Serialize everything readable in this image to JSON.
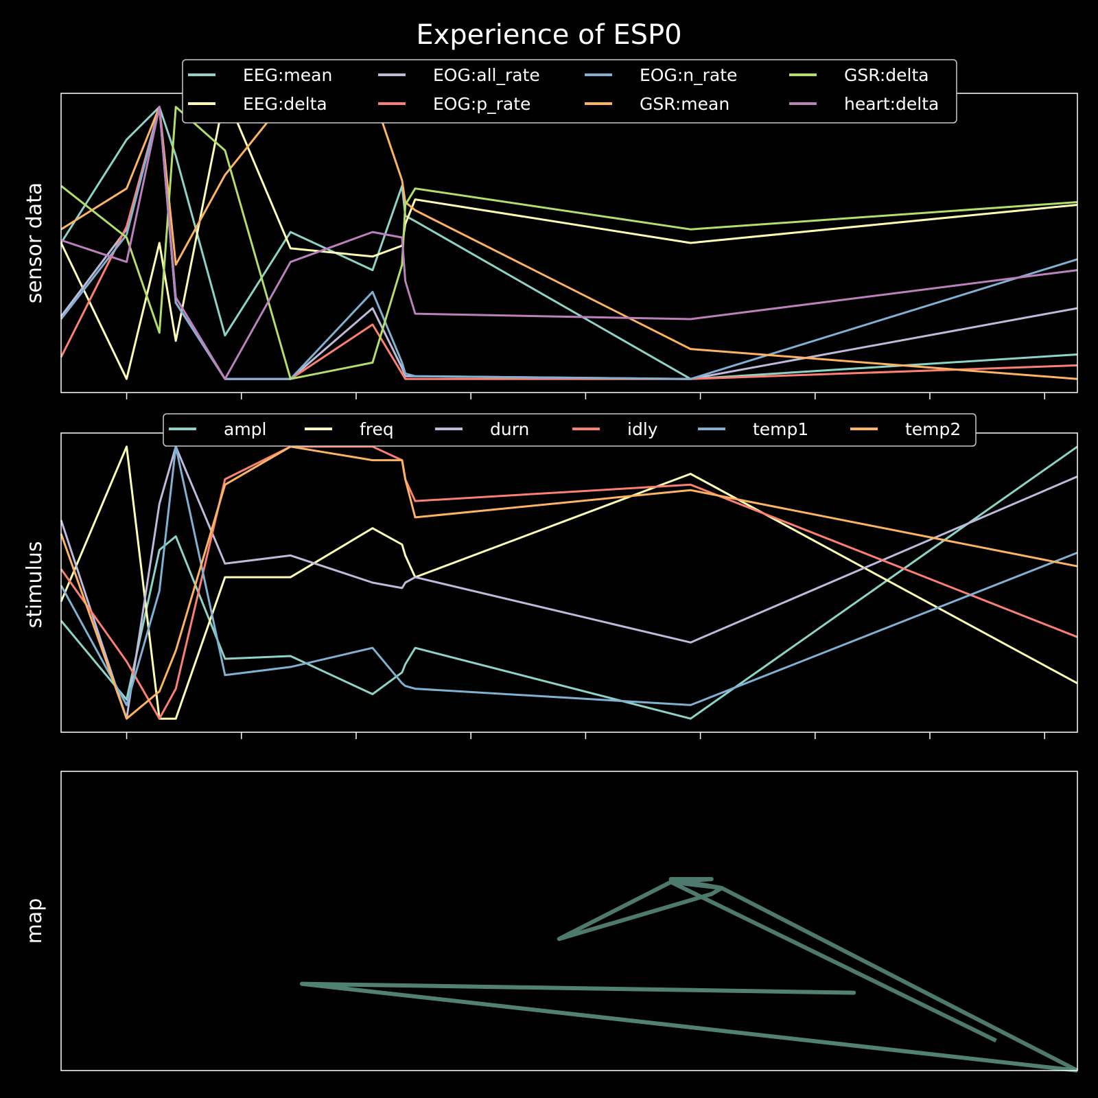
{
  "figure": {
    "title": "Experience of ESP0",
    "background": "#000000"
  },
  "chart_data": [
    {
      "type": "line",
      "ylabel": "sensor data",
      "xlim": [
        0,
        31
      ],
      "ylim": [
        -0.05,
        1.05
      ],
      "grid": false,
      "legend_placement": "top-center",
      "x": [
        0,
        2,
        3,
        3.5,
        5,
        7,
        9.5,
        10.4,
        10.5,
        10.8,
        19.2,
        31
      ],
      "series": [
        {
          "name": "EEG:mean",
          "color": "#8dd3c7",
          "values": [
            0.5,
            0.88,
            1.0,
            0.82,
            0.16,
            0.54,
            0.4,
            0.71,
            0.6,
            0.58,
            0.0,
            0.09
          ]
        },
        {
          "name": "EEG:delta",
          "color": "#ffffb3",
          "values": [
            0.5,
            0.0,
            0.5,
            0.14,
            1.05,
            0.48,
            0.45,
            0.49,
            0.57,
            0.66,
            0.5,
            0.64
          ]
        },
        {
          "name": "EOG:all_rate",
          "color": "#bebada",
          "values": [
            0.23,
            0.55,
            1.0,
            0.28,
            0.0,
            0.0,
            0.26,
            0.04,
            0.01,
            0.01,
            0.0,
            0.26
          ]
        },
        {
          "name": "EOG:p_rate",
          "color": "#fb8072",
          "values": [
            0.08,
            0.56,
            1.0,
            0.28,
            0.0,
            0.0,
            0.2,
            0.02,
            0.0,
            0.0,
            0.0,
            0.05
          ]
        },
        {
          "name": "EOG:n_rate",
          "color": "#80b1d3",
          "values": [
            0.22,
            0.53,
            1.0,
            0.28,
            0.0,
            0.0,
            0.32,
            0.06,
            0.02,
            0.01,
            0.0,
            0.44
          ]
        },
        {
          "name": "GSR:mean",
          "color": "#fdb462",
          "values": [
            0.55,
            0.7,
            1.0,
            0.42,
            0.75,
            1.05,
            1.05,
            0.73,
            0.65,
            0.62,
            0.11,
            0.0
          ]
        },
        {
          "name": "GSR:delta",
          "color": "#b3de69",
          "values": [
            0.71,
            0.52,
            0.17,
            1.0,
            0.84,
            0.0,
            0.06,
            0.42,
            0.64,
            0.7,
            0.55,
            0.65
          ]
        },
        {
          "name": "heart:delta",
          "color": "#bc80bd",
          "values": [
            0.51,
            0.43,
            1.0,
            0.3,
            0.0,
            0.43,
            0.54,
            0.52,
            0.36,
            0.24,
            0.22,
            0.4
          ]
        }
      ]
    },
    {
      "type": "line",
      "ylabel": "stimulus",
      "xlim": [
        0,
        31
      ],
      "ylim": [
        -0.05,
        1.05
      ],
      "grid": false,
      "legend_placement": "top-center",
      "x": [
        0,
        2,
        3,
        3.5,
        5,
        7,
        9.5,
        10.4,
        10.5,
        10.8,
        19.2,
        31
      ],
      "series": [
        {
          "name": "ampl",
          "color": "#8dd3c7",
          "values": [
            0.36,
            0.07,
            0.62,
            0.67,
            0.22,
            0.23,
            0.09,
            0.17,
            0.2,
            0.26,
            0.0,
            1.0
          ]
        },
        {
          "name": "freq",
          "color": "#ffffb3",
          "values": [
            0.43,
            1.0,
            0.0,
            0.0,
            0.52,
            0.52,
            0.7,
            0.64,
            0.6,
            0.52,
            0.9,
            0.13
          ]
        },
        {
          "name": "durn",
          "color": "#bebada",
          "values": [
            0.73,
            0.0,
            0.79,
            1.0,
            0.57,
            0.6,
            0.5,
            0.48,
            0.5,
            0.52,
            0.28,
            0.89
          ]
        },
        {
          "name": "idly",
          "color": "#fb8072",
          "values": [
            0.55,
            0.21,
            0.0,
            0.11,
            0.88,
            1.0,
            1.0,
            0.95,
            0.88,
            0.8,
            0.86,
            0.3
          ]
        },
        {
          "name": "temp1",
          "color": "#80b1d3",
          "values": [
            0.49,
            0.05,
            0.47,
            1.0,
            0.16,
            0.19,
            0.26,
            0.13,
            0.12,
            0.11,
            0.05,
            0.61
          ]
        },
        {
          "name": "temp2",
          "color": "#fdb462",
          "values": [
            0.68,
            0.0,
            0.1,
            0.25,
            0.86,
            1.0,
            0.95,
            0.95,
            0.88,
            0.74,
            0.84,
            0.56
          ]
        }
      ]
    },
    {
      "type": "line",
      "ylabel": "map",
      "xlim": [
        0,
        1
      ],
      "ylim": [
        0,
        1
      ],
      "grid": false,
      "line_color": "#5a8f80",
      "x": [
        1.0,
        0.237,
        0.78,
        0.237
      ],
      "y": [
        0.0,
        0.29,
        0.26,
        0.29
      ],
      "series": [
        {
          "x": [
            0.92,
            0.6,
            0.64,
            0.6,
            0.65,
            0.6,
            0.49,
            0.64,
            0.65,
            1.0
          ],
          "y": [
            0.1,
            0.63,
            0.64,
            0.64,
            0.61,
            0.63,
            0.44,
            0.59,
            0.61,
            0.0
          ]
        }
      ]
    }
  ]
}
